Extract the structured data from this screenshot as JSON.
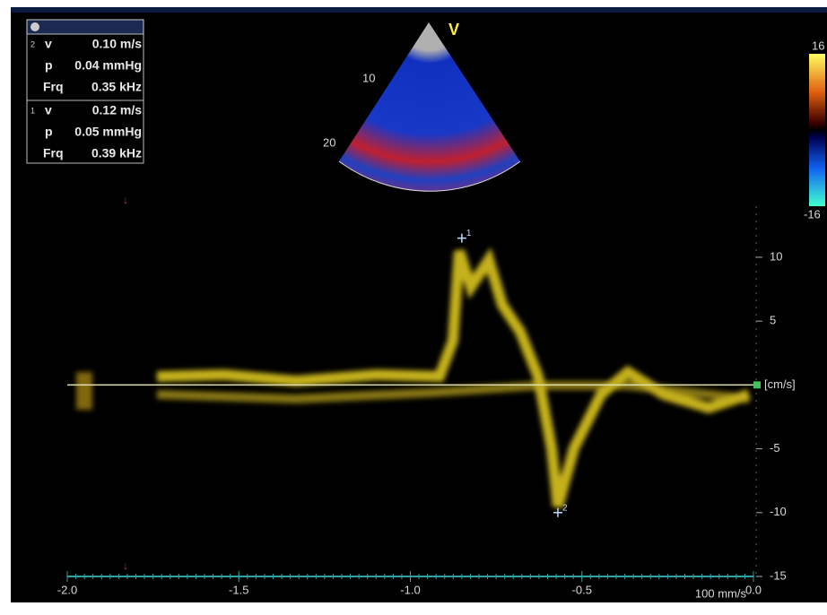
{
  "measurements": [
    {
      "index": "2",
      "rows": [
        [
          "v",
          "0.10 m/s"
        ],
        [
          "p",
          "0.04 mmHg"
        ],
        [
          "Frq",
          "0.35 kHz"
        ]
      ]
    },
    {
      "index": "1",
      "rows": [
        [
          "v",
          "0.12 m/s"
        ],
        [
          "p",
          "0.05 mmHg"
        ],
        [
          "Frq",
          "0.39 kHz"
        ]
      ]
    }
  ],
  "sector": {
    "mode": "V",
    "depth_labels": [
      "10",
      "20"
    ]
  },
  "color_bar": {
    "max_label": "16",
    "min_label": "-16"
  },
  "spectrum": {
    "unit": "[cm/s]",
    "sweep": "100 mm/s",
    "ylim": [
      -15,
      14
    ],
    "yticks": [
      10,
      5,
      -5,
      -10,
      -15
    ],
    "xlim": [
      -2.0,
      0.0
    ],
    "xticks": [
      {
        "value": -2.0,
        "label": "-2.0"
      },
      {
        "value": -1.5,
        "label": "-1.5"
      },
      {
        "value": -1.0,
        "label": "-1.0"
      },
      {
        "value": -0.5,
        "label": "-0.5"
      },
      {
        "value": 0.0,
        "label": "0.0"
      }
    ],
    "markers": [
      {
        "label": "1",
        "x": -0.85,
        "y": 11.5
      },
      {
        "label": "2",
        "x": -0.57,
        "y": -10
      }
    ]
  }
}
